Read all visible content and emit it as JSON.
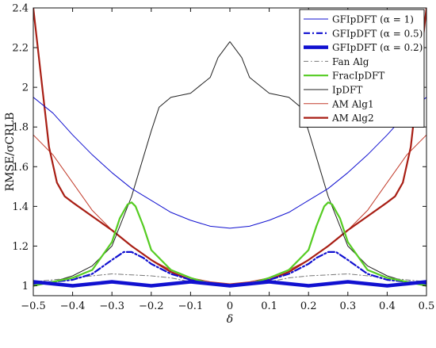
{
  "chart_data": {
    "type": "line",
    "xlabel": "δ",
    "ylabel": "RMSE/σCRLB",
    "xlim": [
      -0.5,
      0.5
    ],
    "ylim": [
      0.95,
      2.4
    ],
    "grid": false,
    "legend_position": "top-right",
    "x_ticks": [
      -0.5,
      -0.4,
      -0.3,
      -0.2,
      -0.1,
      0,
      0.1,
      0.2,
      0.3,
      0.4,
      0.5
    ],
    "x_tick_labels": [
      "−0.5",
      "−0.4",
      "−0.3",
      "−0.2",
      "−0.1",
      "0",
      "0.1",
      "0.2",
      "0.3",
      "0.4",
      "0.5"
    ],
    "y_ticks": [
      1,
      1.2,
      1.4,
      1.6,
      1.8,
      2,
      2.2,
      2.4
    ],
    "y_tick_labels": [
      "1",
      "1.2",
      "1.4",
      "1.6",
      "1.8",
      "2",
      "2.2",
      "2.4"
    ],
    "series": [
      {
        "name": "GFIpDFT (α = 1)",
        "color": "#1010d0",
        "style": "solid-thin",
        "x": [
          -0.5,
          -0.45,
          -0.4,
          -0.35,
          -0.3,
          -0.25,
          -0.2,
          -0.15,
          -0.1,
          -0.05,
          0,
          0.05,
          0.1,
          0.15,
          0.2,
          0.25,
          0.3,
          0.35,
          0.4,
          0.45,
          0.5
        ],
        "y": [
          1.95,
          1.87,
          1.76,
          1.66,
          1.57,
          1.49,
          1.43,
          1.37,
          1.33,
          1.3,
          1.29,
          1.3,
          1.33,
          1.37,
          1.43,
          1.49,
          1.57,
          1.66,
          1.76,
          1.87,
          1.95
        ]
      },
      {
        "name": "GFIpDFT (α = 0.5)",
        "color": "#1010d0",
        "style": "dashdot-medium",
        "x": [
          -0.5,
          -0.4,
          -0.35,
          -0.3,
          -0.27,
          -0.25,
          -0.22,
          -0.2,
          -0.15,
          -0.1,
          -0.05,
          0,
          0.05,
          0.1,
          0.15,
          0.2,
          0.22,
          0.25,
          0.27,
          0.3,
          0.35,
          0.4,
          0.5
        ],
        "y": [
          1.01,
          1.03,
          1.06,
          1.13,
          1.17,
          1.17,
          1.14,
          1.11,
          1.06,
          1.03,
          1.01,
          1.0,
          1.01,
          1.03,
          1.06,
          1.11,
          1.14,
          1.17,
          1.17,
          1.13,
          1.06,
          1.03,
          1.01
        ]
      },
      {
        "name": "GFIpDFT (α = 0.2)",
        "color": "#1010d0",
        "style": "solid-thick",
        "x": [
          -0.5,
          -0.45,
          -0.4,
          -0.35,
          -0.3,
          -0.25,
          -0.2,
          -0.15,
          -0.1,
          -0.05,
          0,
          0.05,
          0.1,
          0.15,
          0.2,
          0.25,
          0.3,
          0.35,
          0.4,
          0.45,
          0.5
        ],
        "y": [
          1.02,
          1.01,
          1.0,
          1.01,
          1.02,
          1.01,
          1.0,
          1.01,
          1.02,
          1.01,
          1.0,
          1.01,
          1.02,
          1.01,
          1.0,
          1.01,
          1.02,
          1.01,
          1.0,
          1.01,
          1.02
        ]
      },
      {
        "name": "Fan Alg",
        "color": "#777777",
        "style": "dashdot-thin",
        "x": [
          -0.5,
          -0.4,
          -0.3,
          -0.2,
          -0.15,
          -0.1,
          -0.05,
          0,
          0.05,
          0.1,
          0.15,
          0.2,
          0.3,
          0.4,
          0.5
        ],
        "y": [
          1.02,
          1.04,
          1.06,
          1.05,
          1.04,
          1.02,
          1.01,
          1.0,
          1.01,
          1.02,
          1.04,
          1.05,
          1.06,
          1.04,
          1.02
        ]
      },
      {
        "name": "FracIpDFT",
        "color": "#55cc22",
        "style": "solid-medium",
        "x": [
          -0.5,
          -0.4,
          -0.35,
          -0.3,
          -0.28,
          -0.26,
          -0.25,
          -0.24,
          -0.22,
          -0.2,
          -0.15,
          -0.1,
          -0.05,
          0,
          0.05,
          0.1,
          0.15,
          0.2,
          0.22,
          0.24,
          0.25,
          0.26,
          0.28,
          0.3,
          0.35,
          0.4,
          0.5
        ],
        "y": [
          1.0,
          1.04,
          1.08,
          1.22,
          1.34,
          1.41,
          1.42,
          1.4,
          1.3,
          1.18,
          1.08,
          1.04,
          1.01,
          1.0,
          1.01,
          1.04,
          1.08,
          1.18,
          1.3,
          1.4,
          1.42,
          1.41,
          1.34,
          1.22,
          1.08,
          1.04,
          1.0
        ]
      },
      {
        "name": "IpDFT",
        "color": "#222222",
        "style": "solid-thin",
        "x": [
          -0.5,
          -0.45,
          -0.4,
          -0.35,
          -0.3,
          -0.25,
          -0.2,
          -0.18,
          -0.15,
          -0.1,
          -0.05,
          -0.03,
          0,
          0.03,
          0.05,
          0.1,
          0.15,
          0.18,
          0.2,
          0.25,
          0.3,
          0.35,
          0.4,
          0.45,
          0.5
        ],
        "y": [
          1.0,
          1.02,
          1.05,
          1.1,
          1.2,
          1.45,
          1.78,
          1.9,
          1.95,
          1.97,
          2.05,
          2.15,
          2.23,
          2.15,
          2.05,
          1.97,
          1.95,
          1.9,
          1.78,
          1.45,
          1.2,
          1.1,
          1.05,
          1.02,
          1.0
        ]
      },
      {
        "name": "AM Alg1",
        "color": "#c23b2a",
        "style": "solid-thin",
        "x": [
          -0.5,
          -0.45,
          -0.4,
          -0.35,
          -0.3,
          -0.25,
          -0.2,
          -0.15,
          -0.1,
          -0.05,
          0,
          0.05,
          0.1,
          0.15,
          0.2,
          0.25,
          0.3,
          0.35,
          0.4,
          0.45,
          0.5
        ],
        "y": [
          1.76,
          1.66,
          1.52,
          1.38,
          1.28,
          1.2,
          1.13,
          1.08,
          1.04,
          1.02,
          1.01,
          1.02,
          1.04,
          1.08,
          1.13,
          1.2,
          1.28,
          1.38,
          1.52,
          1.66,
          1.76
        ]
      },
      {
        "name": "AM Alg2",
        "color": "#a81e14",
        "style": "solid-medium",
        "x": [
          -0.5,
          -0.48,
          -0.46,
          -0.44,
          -0.42,
          -0.4,
          -0.35,
          -0.3,
          -0.25,
          -0.2,
          -0.15,
          -0.1,
          -0.05,
          0,
          0.05,
          0.1,
          0.15,
          0.2,
          0.25,
          0.3,
          0.35,
          0.4,
          0.42,
          0.44,
          0.46,
          0.48,
          0.5
        ],
        "y": [
          2.4,
          2.05,
          1.7,
          1.52,
          1.45,
          1.42,
          1.35,
          1.28,
          1.2,
          1.13,
          1.07,
          1.03,
          1.01,
          1.0,
          1.01,
          1.03,
          1.07,
          1.13,
          1.2,
          1.28,
          1.35,
          1.42,
          1.45,
          1.52,
          1.7,
          2.05,
          2.4
        ]
      }
    ]
  }
}
